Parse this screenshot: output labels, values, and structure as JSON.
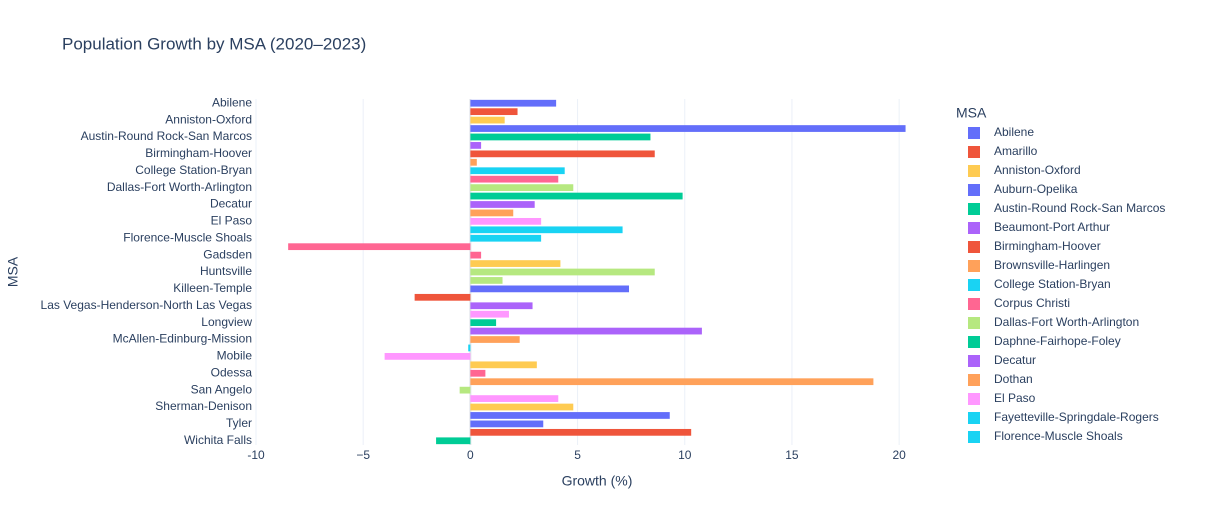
{
  "chart_data": {
    "type": "barh",
    "title": "Population Growth by MSA (2020–2023)",
    "x_label": "Growth (%)",
    "y_label": "MSA",
    "categories": [
      "Abilene",
      null,
      "Anniston-Oxford",
      null,
      "Austin-Round Rock-San Marcos",
      null,
      "Birmingham-Hoover",
      null,
      "College Station-Bryan",
      null,
      "Dallas-Fort Worth-Arlington",
      null,
      "Decatur",
      null,
      "El Paso",
      null,
      "Florence-Muscle Shoals",
      null,
      "Gadsden",
      null,
      "Huntsville",
      null,
      "Killeen-Temple",
      null,
      "Las Vegas-Henderson-North Las Vegas",
      null,
      "Longview",
      null,
      "McAllen-Edinburg-Mission",
      null,
      "Mobile",
      null,
      "Odessa",
      null,
      "San Angelo",
      null,
      "Sherman-Denison",
      null,
      "Tyler",
      null,
      "Wichita Falls"
    ],
    "values": [
      4.0,
      2.2,
      1.6,
      20.3,
      8.4,
      0.5,
      8.6,
      0.3,
      4.4,
      4.1,
      4.8,
      9.9,
      3.0,
      2.0,
      3.3,
      7.1,
      3.3,
      -8.5,
      0.5,
      4.2,
      8.6,
      1.5,
      7.4,
      -2.6,
      2.9,
      1.8,
      1.2,
      10.8,
      2.3,
      -0.1,
      -4.0,
      3.1,
      0.7,
      18.8,
      -0.5,
      4.1,
      4.8,
      9.3,
      3.4,
      10.3,
      -1.6
    ],
    "colors": [
      "#636efa",
      "#ef553b",
      "#fecb52",
      "#636efa",
      "#00cc96",
      "#ab63fa",
      "#ef553b",
      "#ffa15a",
      "#19d3f3",
      "#ff6692",
      "#b6e880",
      "#00cc96",
      "#ab63fa",
      "#ffa15a",
      "#ff97ff",
      "#19d3f3",
      "#19d3f3",
      "#ff6692",
      "#ff6692",
      "#fecb52",
      "#b6e880",
      "#b6e880",
      "#636efa",
      "#ef553b",
      "#ab63fa",
      "#ff97ff",
      "#00cc96",
      "#ab63fa",
      "#ffa15a",
      "#19d3f3",
      "#ff97ff",
      "#fecb52",
      "#ff6692",
      "#ffa15a",
      "#b6e880",
      "#ff97ff",
      "#fecb52",
      "#636efa",
      "#636efa",
      "#ef553b",
      "#00cc96"
    ],
    "xlim": [
      -10,
      22
    ],
    "xticks": [
      -10,
      {
        "value": -5,
        "label": "−5"
      },
      0,
      5,
      10,
      15,
      20
    ],
    "grid": true,
    "legend": {
      "title": "MSA",
      "position": "right",
      "entries": [
        {
          "name": "Abilene",
          "color": "#636efa"
        },
        {
          "name": "Amarillo",
          "color": "#ef553b"
        },
        {
          "name": "Anniston-Oxford",
          "color": "#fecb52"
        },
        {
          "name": "Auburn-Opelika",
          "color": "#636efa"
        },
        {
          "name": "Austin-Round Rock-San Marcos",
          "color": "#00cc96"
        },
        {
          "name": "Beaumont-Port Arthur",
          "color": "#ab63fa"
        },
        {
          "name": "Birmingham-Hoover",
          "color": "#ef553b"
        },
        {
          "name": "Brownsville-Harlingen",
          "color": "#ffa15a"
        },
        {
          "name": "College Station-Bryan",
          "color": "#19d3f3"
        },
        {
          "name": "Corpus Christi",
          "color": "#ff6692"
        },
        {
          "name": "Dallas-Fort Worth-Arlington",
          "color": "#b6e880"
        },
        {
          "name": "Daphne-Fairhope-Foley",
          "color": "#00cc96"
        },
        {
          "name": "Decatur",
          "color": "#ab63fa"
        },
        {
          "name": "Dothan",
          "color": "#ffa15a"
        },
        {
          "name": "El Paso",
          "color": "#ff97ff"
        },
        {
          "name": "Fayetteville-Springdale-Rogers",
          "color": "#19d3f3"
        },
        {
          "name": "Florence-Muscle Shoals",
          "color": "#19d3f3"
        }
      ]
    }
  }
}
